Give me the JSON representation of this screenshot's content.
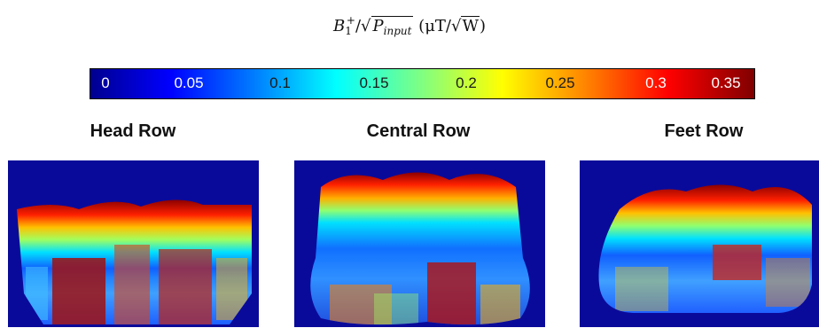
{
  "title": {
    "b": "B",
    "b_sub": "1",
    "b_sup": "+",
    "p": "P",
    "p_sub": "input",
    "unit_prefix": "(μT/",
    "unit_root": "W",
    "unit_suffix": ")"
  },
  "colorbar": {
    "ticks": [
      "0",
      "0.05",
      "0.1",
      "0.15",
      "0.2",
      "0.25",
      "0.3",
      "0.35"
    ],
    "colormap": "jet",
    "range": [
      0,
      0.35
    ]
  },
  "rows": [
    {
      "label": "Head Row"
    },
    {
      "label": "Central Row"
    },
    {
      "label": "Feet Row"
    }
  ],
  "colors": {
    "background_map": "#0a0a9a",
    "hot": "#8b0000"
  }
}
